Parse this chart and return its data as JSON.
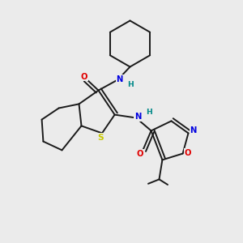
{
  "background_color": "#ebebeb",
  "bond_color": "#1a1a1a",
  "atom_colors": {
    "O": "#e00000",
    "N": "#0000e0",
    "S": "#c8c800",
    "H": "#008888",
    "C": "#1a1a1a"
  },
  "figsize": [
    3.0,
    3.0
  ],
  "dpi": 100
}
